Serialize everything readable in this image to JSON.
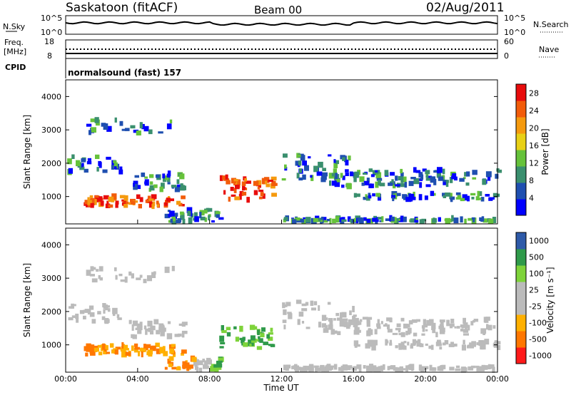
{
  "header": {
    "station": "Saskatoon (fitACF)",
    "beam": "Beam 00",
    "date": "02/Aug/2011"
  },
  "top_panel": {
    "left_label": "N.Sky",
    "left_ticks": [
      "10^5",
      "10^0"
    ],
    "right_ticks": [
      "10^5",
      "10^0"
    ],
    "right_label": "N.Search"
  },
  "freq_panel": {
    "left_label_1": "Freq.",
    "left_label_2": "[MHz]",
    "left_ticks": [
      "18",
      "8"
    ],
    "right_ticks": [
      "60",
      "0"
    ],
    "right_label": "Nave"
  },
  "cpid_panel": {
    "label": "CPID",
    "program": "normalsound (fast) 157"
  },
  "colors": {
    "power_scale": [
      "#0000ff",
      "#1f4fb0",
      "#3a8f6e",
      "#66c23a",
      "#e8d016",
      "#f59a0e",
      "#f25c0a",
      "#e80c0c"
    ],
    "velocity_scale": [
      "#ff1a1a",
      "#ff7700",
      "#ffb000",
      "#bbbbbb",
      "#bbbbbb",
      "#7ed33a",
      "#2f9a4a",
      "#2e5aa8"
    ]
  },
  "chart_data": [
    {
      "type": "heatmap",
      "title": "",
      "quantity": "Power",
      "ylabel": "Slant Range [km]",
      "xlabel": "",
      "x_ticks": [
        "00:00",
        "04:00",
        "08:00",
        "12:00",
        "16:00",
        "20:00",
        "00:00"
      ],
      "y_ticks": [
        1000,
        2000,
        3000,
        4000
      ],
      "xlim_hours": [
        0,
        24
      ],
      "ylim_km": [
        180,
        4500
      ],
      "colorbar": {
        "label": "Power [dB]",
        "ticks": [
          4,
          8,
          12,
          16,
          20,
          24,
          28
        ],
        "range": [
          0,
          30
        ]
      }
    },
    {
      "type": "heatmap",
      "title": "",
      "quantity": "Velocity",
      "ylabel": "Slant Range [km]",
      "xlabel": "Time UT",
      "x_ticks": [
        "00:00",
        "04:00",
        "08:00",
        "12:00",
        "16:00",
        "20:00",
        "00:00"
      ],
      "y_ticks": [
        1000,
        2000,
        3000,
        4000
      ],
      "xlim_hours": [
        0,
        24
      ],
      "ylim_km": [
        180,
        4500
      ],
      "colorbar": {
        "label": "Velocity [m s⁻¹]",
        "ticks": [
          "1000",
          "500",
          "100",
          "25",
          "-25",
          "-100",
          "-500",
          "-1000"
        ]
      }
    }
  ]
}
